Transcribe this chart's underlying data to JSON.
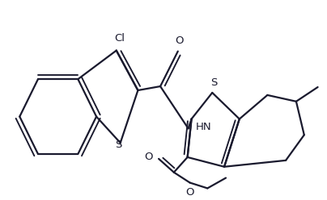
{
  "bg_color": "#ffffff",
  "line_color": "#1a1a2e",
  "line_width": 1.6,
  "font_size": 9.5,
  "figsize": [
    4.04,
    2.48
  ],
  "dpi": 100,
  "xlim": [
    0,
    10.1
  ],
  "ylim": [
    0,
    6.2
  ]
}
